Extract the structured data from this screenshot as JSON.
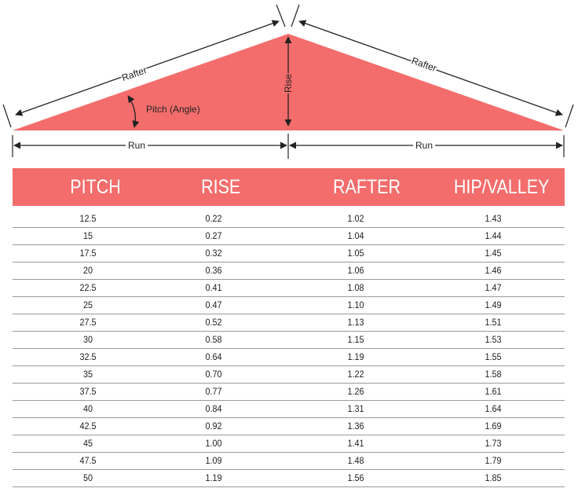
{
  "diagram": {
    "labels": {
      "rafter_left": "Rafter",
      "rafter_right": "Rafter",
      "pitch": "Pitch (Angle)",
      "rise": "Rise",
      "run_left": "Run",
      "run_right": "Run"
    },
    "colors": {
      "roof_fill": "#f36d6c",
      "line": "#222222"
    }
  },
  "table": {
    "headers": [
      "PITCH",
      "RISE",
      "RAFTER",
      "HIP/VALLEY"
    ],
    "header_color": "#f36d6c",
    "rows": [
      [
        "12.5",
        "0.22",
        "1.02",
        "1.43"
      ],
      [
        "15",
        "0.27",
        "1.04",
        "1.44"
      ],
      [
        "17.5",
        "0.32",
        "1.05",
        "1.45"
      ],
      [
        "20",
        "0.36",
        "1.06",
        "1.46"
      ],
      [
        "22.5",
        "0.41",
        "1.08",
        "1.47"
      ],
      [
        "25",
        "0.47",
        "1.10",
        "1.49"
      ],
      [
        "27.5",
        "0.52",
        "1.13",
        "1.51"
      ],
      [
        "30",
        "0.58",
        "1.15",
        "1.53"
      ],
      [
        "32.5",
        "0.64",
        "1.19",
        "1.55"
      ],
      [
        "35",
        "0.70",
        "1.22",
        "1.58"
      ],
      [
        "37.5",
        "0.77",
        "1.26",
        "1.61"
      ],
      [
        "40",
        "0.84",
        "1.31",
        "1.64"
      ],
      [
        "42.5",
        "0.92",
        "1.36",
        "1.69"
      ],
      [
        "45",
        "1.00",
        "1.41",
        "1.73"
      ],
      [
        "47.5",
        "1.09",
        "1.48",
        "1.79"
      ],
      [
        "50",
        "1.19",
        "1.56",
        "1.85"
      ]
    ]
  }
}
